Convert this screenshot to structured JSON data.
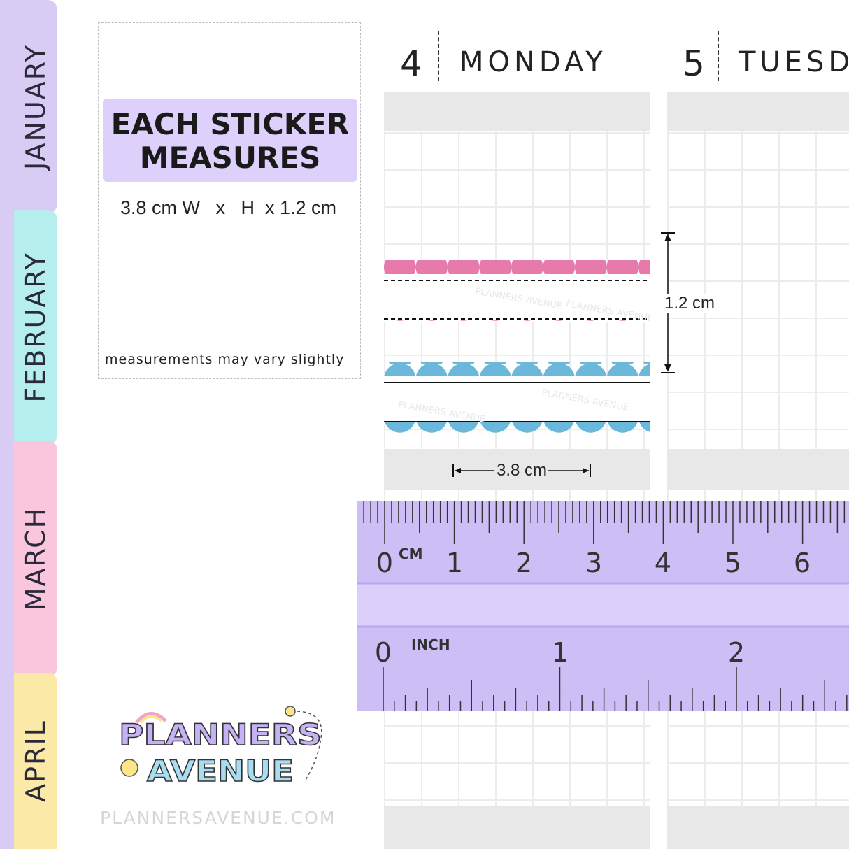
{
  "tabs": [
    {
      "label": "JANUARY",
      "color": "#d8ccf5"
    },
    {
      "label": "FEBRUARY",
      "color": "#b6eeed"
    },
    {
      "label": "MARCH",
      "color": "#f9c6de"
    },
    {
      "label": "APRIL",
      "color": "#fbe9a8"
    }
  ],
  "info": {
    "title_line1": "EACH STICKER",
    "title_line2": "MEASURES",
    "dimensions": "3.8 cm W   x   H  x 1.2 cm",
    "note": "measurements may vary slightly"
  },
  "days": [
    {
      "number": "4",
      "name": "MONDAY"
    },
    {
      "number": "5",
      "name": "TUESD"
    }
  ],
  "measure": {
    "height_label": "1.2 cm",
    "width_label": "3.8 cm"
  },
  "ruler": {
    "cm_unit": "CM",
    "cm_numbers": [
      "0",
      "1",
      "2",
      "3",
      "4",
      "5",
      "6"
    ],
    "inch_unit": "INCH",
    "inch_numbers": [
      "0",
      "1",
      "2"
    ],
    "color": "#c9b8f4"
  },
  "stickers": [
    {
      "color": "#e57aab",
      "style": "dashed"
    },
    {
      "color": "#6bb8da",
      "style": "solid"
    }
  ],
  "watermark": "PLANNERS AVENUE",
  "logo": {
    "line1": "PLANNERS",
    "line2": "AVENUE"
  },
  "website": "PLANNERSAVENUE.COM"
}
